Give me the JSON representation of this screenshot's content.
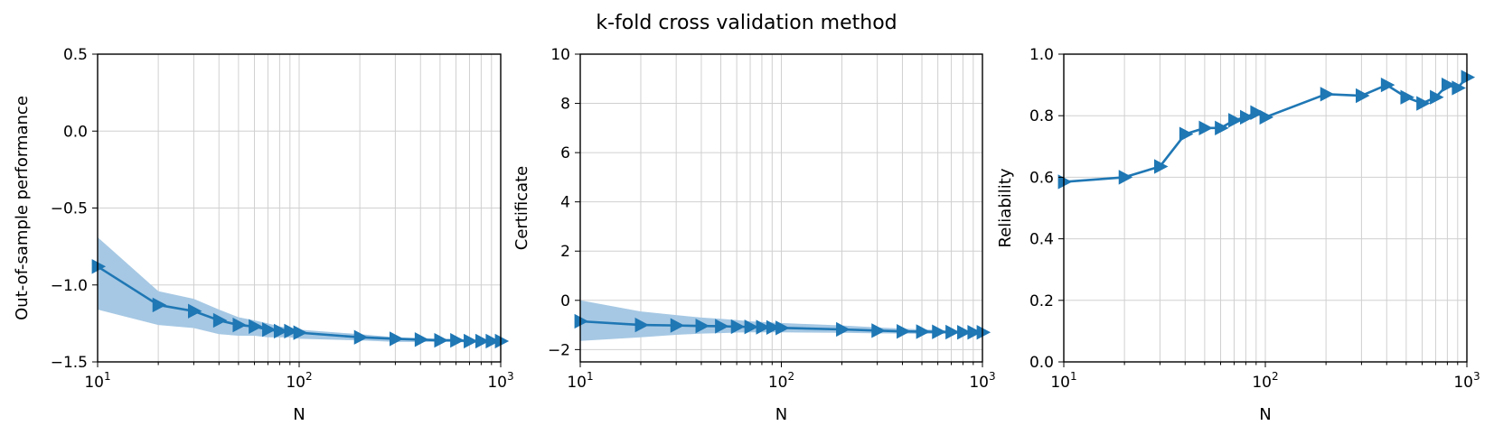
{
  "figure": {
    "title": "k-fold cross validation method"
  },
  "colors": {
    "line": "#1f77b4",
    "band": "#a6c8e4",
    "grid": "#d0d0d0"
  },
  "chart_data": [
    {
      "type": "line",
      "marker": "triangle-right",
      "xscale": "log",
      "xlabel": "N",
      "ylabel": "Out-of-sample performance",
      "xlim": [
        10,
        1000
      ],
      "ylim": [
        -1.5,
        0.5
      ],
      "yticks": [
        -1.5,
        -1.0,
        -0.5,
        0.0,
        0.5
      ],
      "ytick_labels": [
        "−1.5",
        "−1.0",
        "−0.5",
        "0.0",
        "0.5"
      ],
      "grid": true,
      "x": [
        10,
        20,
        30,
        40,
        50,
        60,
        70,
        80,
        90,
        100,
        200,
        300,
        400,
        500,
        600,
        700,
        800,
        900,
        1000
      ],
      "y": [
        -0.88,
        -1.13,
        -1.17,
        -1.23,
        -1.26,
        -1.27,
        -1.29,
        -1.3,
        -1.3,
        -1.31,
        -1.34,
        -1.35,
        -1.355,
        -1.36,
        -1.36,
        -1.365,
        -1.365,
        -1.365,
        -1.365
      ],
      "band_upper": [
        -0.69,
        -1.04,
        -1.09,
        -1.16,
        -1.21,
        -1.23,
        -1.25,
        -1.27,
        -1.28,
        -1.29,
        -1.32,
        -1.34,
        -1.345,
        -1.35,
        -1.35,
        -1.355,
        -1.355,
        -1.36,
        -1.36
      ],
      "band_lower": [
        -1.16,
        -1.26,
        -1.28,
        -1.32,
        -1.33,
        -1.33,
        -1.34,
        -1.34,
        -1.34,
        -1.35,
        -1.36,
        -1.37,
        -1.37,
        -1.37,
        -1.37,
        -1.375,
        -1.375,
        -1.375,
        -1.375
      ]
    },
    {
      "type": "line",
      "marker": "triangle-right",
      "xscale": "log",
      "xlabel": "N",
      "ylabel": "Certificate",
      "xlim": [
        10,
        1000
      ],
      "ylim": [
        -2.5,
        10
      ],
      "yticks": [
        -2,
        0,
        2,
        4,
        6,
        8,
        10
      ],
      "ytick_labels": [
        "−2",
        "0",
        "2",
        "4",
        "6",
        "8",
        "10"
      ],
      "grid": true,
      "x": [
        10,
        20,
        30,
        40,
        50,
        60,
        70,
        80,
        90,
        100,
        200,
        300,
        400,
        500,
        600,
        700,
        800,
        900,
        1000
      ],
      "y": [
        -0.85,
        -1.0,
        -1.02,
        -1.04,
        -1.05,
        -1.07,
        -1.08,
        -1.09,
        -1.1,
        -1.12,
        -1.18,
        -1.23,
        -1.26,
        -1.27,
        -1.28,
        -1.29,
        -1.3,
        -1.3,
        -1.3
      ],
      "band_upper": [
        0.0,
        -0.45,
        -0.6,
        -0.7,
        -0.75,
        -0.8,
        -0.85,
        -0.88,
        -0.9,
        -0.92,
        -1.02,
        -1.1,
        -1.15,
        -1.18,
        -1.2,
        -1.22,
        -1.24,
        -1.25,
        -1.25
      ],
      "band_lower": [
        -1.65,
        -1.5,
        -1.4,
        -1.35,
        -1.33,
        -1.31,
        -1.3,
        -1.3,
        -1.3,
        -1.3,
        -1.32,
        -1.34,
        -1.35,
        -1.36,
        -1.36,
        -1.36,
        -1.36,
        -1.36,
        -1.36
      ]
    },
    {
      "type": "line",
      "marker": "triangle-right",
      "xscale": "log",
      "xlabel": "N",
      "ylabel": "Reliability",
      "xlim": [
        10,
        1000
      ],
      "ylim": [
        0.0,
        1.0
      ],
      "yticks": [
        0.0,
        0.2,
        0.4,
        0.6,
        0.8,
        1.0
      ],
      "ytick_labels": [
        "0.0",
        "0.2",
        "0.4",
        "0.6",
        "0.8",
        "1.0"
      ],
      "grid": true,
      "x": [
        10,
        20,
        30,
        40,
        50,
        60,
        70,
        80,
        90,
        100,
        200,
        300,
        400,
        500,
        600,
        700,
        800,
        900,
        1000
      ],
      "y": [
        0.585,
        0.6,
        0.635,
        0.74,
        0.76,
        0.76,
        0.785,
        0.795,
        0.81,
        0.795,
        0.87,
        0.865,
        0.9,
        0.86,
        0.84,
        0.86,
        0.9,
        0.89,
        0.925
      ]
    }
  ]
}
